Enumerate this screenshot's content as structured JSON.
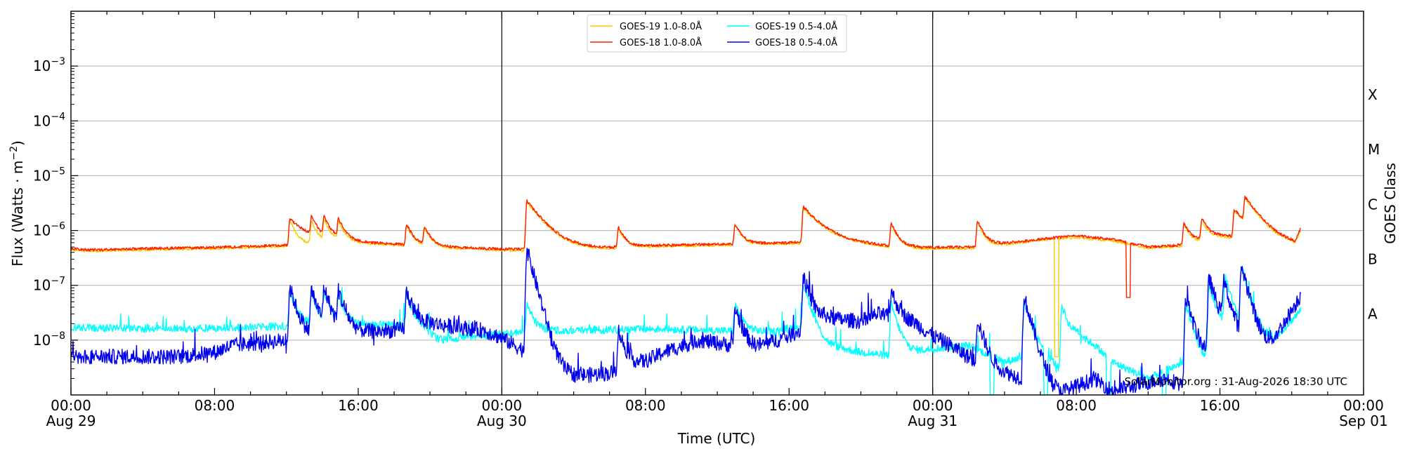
{
  "chart_data": {
    "type": "line",
    "xlabel": "Time (UTC)",
    "ylabel": "Flux (Watts · m",
    "ylabel_sup": "−2",
    "ylabel_close": ")",
    "right_label": "GOES Class",
    "credit": "SolarMonitor.org : 31-Aug-2026 18:30 UTC",
    "yscale": "log",
    "ylim": [
      1e-09,
      0.01
    ],
    "xlim": [
      "2026-08-29 00:00",
      "2026-09-01 00:00"
    ],
    "grid": "horizontal",
    "legend_position": "top-center",
    "y_ticks": [
      {
        "value": 1e-08,
        "base": "10",
        "exp": "−8"
      },
      {
        "value": 1e-07,
        "base": "10",
        "exp": "−7"
      },
      {
        "value": 1e-06,
        "base": "10",
        "exp": "−6"
      },
      {
        "value": 1e-05,
        "base": "10",
        "exp": "−5"
      },
      {
        "value": 0.0001,
        "base": "10",
        "exp": "−4"
      },
      {
        "value": 0.001,
        "base": "10",
        "exp": "−3"
      }
    ],
    "x_ticks": [
      {
        "hours": 0,
        "time": "00:00",
        "date": "Aug 29"
      },
      {
        "hours": 8,
        "time": "08:00",
        "date": ""
      },
      {
        "hours": 16,
        "time": "16:00",
        "date": ""
      },
      {
        "hours": 24,
        "time": "00:00",
        "date": "Aug 30"
      },
      {
        "hours": 32,
        "time": "08:00",
        "date": ""
      },
      {
        "hours": 40,
        "time": "16:00",
        "date": ""
      },
      {
        "hours": 48,
        "time": "00:00",
        "date": "Aug 31"
      },
      {
        "hours": 56,
        "time": "08:00",
        "date": ""
      },
      {
        "hours": 64,
        "time": "16:00",
        "date": ""
      },
      {
        "hours": 72,
        "time": "00:00",
        "date": "Sep 01"
      }
    ],
    "day_boundaries_hours": [
      24,
      48
    ],
    "goes_classes": [
      {
        "label": "A",
        "flux": 3e-08
      },
      {
        "label": "B",
        "flux": 3e-07
      },
      {
        "label": "C",
        "flux": 3e-06
      },
      {
        "label": "M",
        "flux": 3e-05
      },
      {
        "label": "X",
        "flux": 0.0003
      }
    ],
    "series": [
      {
        "name": "GOES-19 1.0-8.0Å",
        "color": "#FFC800",
        "baseline": [
          [
            0,
            4.5e-07
          ],
          [
            1,
            4.2e-07
          ],
          [
            3,
            4.4e-07
          ],
          [
            6,
            4.6e-07
          ],
          [
            9,
            4.8e-07
          ],
          [
            12,
            5.2e-07
          ],
          [
            15,
            6e-07
          ],
          [
            18,
            5.5e-07
          ],
          [
            21,
            4.8e-07
          ],
          [
            24,
            4.4e-07
          ],
          [
            27,
            4.3e-07
          ],
          [
            30,
            4.6e-07
          ],
          [
            33,
            5.2e-07
          ],
          [
            36,
            5.4e-07
          ],
          [
            40,
            5.8e-07
          ],
          [
            42,
            6.2e-07
          ],
          [
            44,
            5.6e-07
          ],
          [
            46,
            4.8e-07
          ],
          [
            48,
            4.6e-07
          ],
          [
            50,
            4.7e-07
          ],
          [
            52,
            5.5e-07
          ],
          [
            54,
            6.8e-07
          ],
          [
            56,
            7.5e-07
          ],
          [
            58,
            6.5e-07
          ],
          [
            60,
            4.8e-07
          ],
          [
            62,
            5.2e-07
          ],
          [
            64,
            7.5e-07
          ],
          [
            65.5,
            7e-07
          ],
          [
            66,
            5.5e-07
          ],
          [
            67,
            4.6e-07
          ],
          [
            68.2,
            4.8e-07
          ],
          [
            68.5,
            9e-07
          ]
        ],
        "flares": [
          [
            12.2,
            1e-06
          ],
          [
            13.4,
            9e-07
          ],
          [
            14.1,
            9e-07
          ],
          [
            14.9,
            8e-07
          ],
          [
            18.7,
            7e-07
          ],
          [
            19.7,
            5.8e-07
          ],
          [
            25.4,
            2.9e-06
          ],
          [
            30.5,
            6e-07
          ],
          [
            37,
            7e-07
          ],
          [
            40.8,
            2e-06
          ],
          [
            45.7,
            8e-07
          ],
          [
            50.5,
            9.5e-07
          ],
          [
            62,
            7.8e-07
          ],
          [
            63,
            9e-07
          ],
          [
            64.8,
            1.5e-06
          ],
          [
            65.4,
            2.4e-06
          ]
        ],
        "dips": [
          [
            54.9,
            5e-09
          ]
        ]
      },
      {
        "name": "GOES-18 1.0-8.0Å",
        "color": "#FF2000",
        "baseline": [
          [
            0,
            4.7e-07
          ],
          [
            1,
            4.4e-07
          ],
          [
            3,
            4.6e-07
          ],
          [
            6,
            4.8e-07
          ],
          [
            9,
            5e-07
          ],
          [
            12,
            5.4e-07
          ],
          [
            15,
            6.2e-07
          ],
          [
            18,
            5.7e-07
          ],
          [
            21,
            5e-07
          ],
          [
            24,
            4.6e-07
          ],
          [
            27,
            4.5e-07
          ],
          [
            30,
            4.8e-07
          ],
          [
            33,
            5.4e-07
          ],
          [
            36,
            5.6e-07
          ],
          [
            40,
            6e-07
          ],
          [
            42,
            6.4e-07
          ],
          [
            44,
            5.8e-07
          ],
          [
            46,
            5e-07
          ],
          [
            48,
            4.9e-07
          ],
          [
            50,
            5e-07
          ],
          [
            52,
            5.8e-07
          ],
          [
            54,
            7e-07
          ],
          [
            56,
            8e-07
          ],
          [
            58,
            7e-07
          ],
          [
            60,
            5e-07
          ],
          [
            62,
            5.5e-07
          ],
          [
            64,
            8e-07
          ],
          [
            65.5,
            7.5e-07
          ],
          [
            66,
            5.8e-07
          ],
          [
            67,
            4.9e-07
          ],
          [
            68.2,
            5e-07
          ],
          [
            68.5,
            1e-06
          ]
        ],
        "flares": [
          [
            12.2,
            1.1e-06
          ],
          [
            13.4,
            1e-06
          ],
          [
            14.1,
            1e-06
          ],
          [
            14.9,
            9e-07
          ],
          [
            18.7,
            7.5e-07
          ],
          [
            19.7,
            6e-07
          ],
          [
            25.4,
            3e-06
          ],
          [
            30.5,
            6.5e-07
          ],
          [
            37,
            7.5e-07
          ],
          [
            40.8,
            2.1e-06
          ],
          [
            45.7,
            8.5e-07
          ],
          [
            50.5,
            1e-06
          ],
          [
            62,
            8.2e-07
          ],
          [
            63,
            1e-06
          ],
          [
            64.8,
            1.6e-06
          ],
          [
            65.4,
            2.5e-06
          ]
        ],
        "dips": [
          [
            58.9,
            6e-08
          ]
        ]
      },
      {
        "name": "GOES-19 0.5-4.0Å",
        "color": "#00FFFF",
        "baseline": [
          [
            0,
            1.7e-08
          ],
          [
            6,
            1.6e-08
          ],
          [
            12,
            1.8e-08
          ],
          [
            18,
            1.9e-08
          ],
          [
            19.5,
            1.6e-08
          ],
          [
            20.5,
            1e-08
          ],
          [
            24,
            1.3e-08
          ],
          [
            27,
            1.5e-08
          ],
          [
            33,
            1.6e-08
          ],
          [
            36,
            1.5e-08
          ],
          [
            39,
            1.4e-08
          ],
          [
            40.5,
            1.8e-08
          ],
          [
            42,
            8e-09
          ],
          [
            44,
            6e-09
          ],
          [
            46,
            5e-09
          ],
          [
            48,
            7e-09
          ],
          [
            50,
            8e-09
          ],
          [
            52,
            4e-09
          ],
          [
            54,
            6e-09
          ],
          [
            55,
            3e-09
          ],
          [
            56,
            1.2e-08
          ],
          [
            57,
            8e-09
          ],
          [
            58,
            4e-09
          ],
          [
            60,
            2e-09
          ],
          [
            62,
            4e-09
          ],
          [
            63,
            3e-09
          ],
          [
            64,
            1.5e-08
          ],
          [
            66,
            1e-08
          ],
          [
            67,
            1e-08
          ],
          [
            68.5,
            3.5e-08
          ]
        ],
        "flares": [
          [
            12.2,
            6e-08
          ],
          [
            13.4,
            5e-08
          ],
          [
            14.1,
            5e-08
          ],
          [
            14.9,
            4e-08
          ],
          [
            18.7,
            5e-08
          ],
          [
            25.4,
            3e-08
          ],
          [
            37,
            3e-08
          ],
          [
            40.8,
            9e-08
          ],
          [
            45.7,
            4e-08
          ],
          [
            53.1,
            4e-08
          ],
          [
            55.2,
            4e-08
          ],
          [
            62.1,
            4e-08
          ],
          [
            63.4,
            9e-08
          ],
          [
            64.3,
            1.2e-07
          ],
          [
            65.2,
            2e-07
          ]
        ],
        "dips": [
          [
            51.3,
            1e-09
          ],
          [
            54.3,
            1e-09
          ],
          [
            57.8,
            1e-09
          ],
          [
            60.9,
            1e-09
          ]
        ]
      },
      {
        "name": "GOES-18 0.5-4.0Å",
        "color": "#0000EE",
        "baseline": [
          [
            0,
            5e-09
          ],
          [
            3,
            5e-09
          ],
          [
            6,
            5e-09
          ],
          [
            8,
            6e-09
          ],
          [
            9,
            8e-09
          ],
          [
            12,
            1e-08
          ],
          [
            15,
            1.3e-08
          ],
          [
            18,
            1.5e-08
          ],
          [
            20,
            2e-08
          ],
          [
            23,
            1.5e-08
          ],
          [
            24,
            1.1e-08
          ],
          [
            25.8,
            5e-09
          ],
          [
            27,
            2e-09
          ],
          [
            30,
            2.5e-09
          ],
          [
            32,
            4e-09
          ],
          [
            33,
            6e-09
          ],
          [
            35,
            1e-08
          ],
          [
            38,
            7e-09
          ],
          [
            40,
            1.2e-08
          ],
          [
            42,
            2.5e-08
          ],
          [
            44,
            2.2e-08
          ],
          [
            45,
            3e-08
          ],
          [
            47,
            2e-08
          ],
          [
            48,
            1.2e-08
          ],
          [
            49,
            8e-09
          ],
          [
            51,
            3e-09
          ],
          [
            53,
            2e-09
          ],
          [
            55,
            1e-09
          ],
          [
            57,
            2e-09
          ],
          [
            58,
            1.2e-09
          ],
          [
            61,
            2e-09
          ],
          [
            62,
            1.5e-09
          ],
          [
            64,
            1.2e-08
          ],
          [
            65,
            7e-09
          ],
          [
            66,
            5e-09
          ],
          [
            67,
            1e-08
          ],
          [
            68.5,
            6.5e-08
          ]
        ],
        "flares": [
          [
            12.2,
            8e-08
          ],
          [
            13.4,
            7e-08
          ],
          [
            14.1,
            7e-08
          ],
          [
            14.9,
            6e-08
          ],
          [
            18.7,
            6e-08
          ],
          [
            25.4,
            4.5e-07
          ],
          [
            30.5,
            1.2e-08
          ],
          [
            37,
            3e-08
          ],
          [
            40.8,
            1.3e-07
          ],
          [
            45.7,
            5e-08
          ],
          [
            50.5,
            2e-08
          ],
          [
            53.1,
            6e-08
          ],
          [
            62.1,
            6e-08
          ],
          [
            63.4,
            1.3e-07
          ],
          [
            64.2,
            1e-07
          ],
          [
            65.2,
            2.1e-07
          ]
        ],
        "dips": []
      }
    ]
  }
}
